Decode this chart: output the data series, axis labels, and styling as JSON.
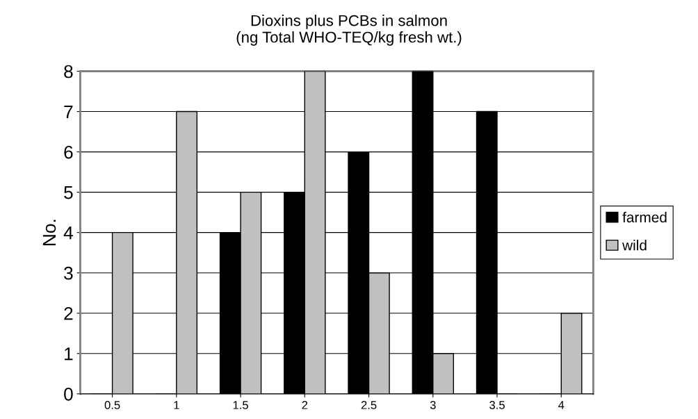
{
  "chart_data": {
    "type": "bar",
    "title": "Dioxins plus PCBs in salmon\n(ng Total WHO-TEQ/kg fresh wt.)",
    "ylabel": "No.",
    "categories": [
      "0.5",
      "1",
      "1.5",
      "2",
      "2.5",
      "3",
      "3.5",
      "4"
    ],
    "series": [
      {
        "name": "farmed",
        "color": "#000000",
        "values": [
          0,
          0,
          4,
          5,
          6,
          8,
          7,
          0
        ]
      },
      {
        "name": "wild",
        "color": "#c0c0c0",
        "values": [
          4,
          7,
          5,
          8,
          3,
          1,
          0,
          2
        ]
      }
    ],
    "ylim": [
      0,
      8
    ],
    "yticks": [
      0,
      1,
      2,
      3,
      4,
      5,
      6,
      7,
      8
    ],
    "grid": "y",
    "legend": "right"
  }
}
